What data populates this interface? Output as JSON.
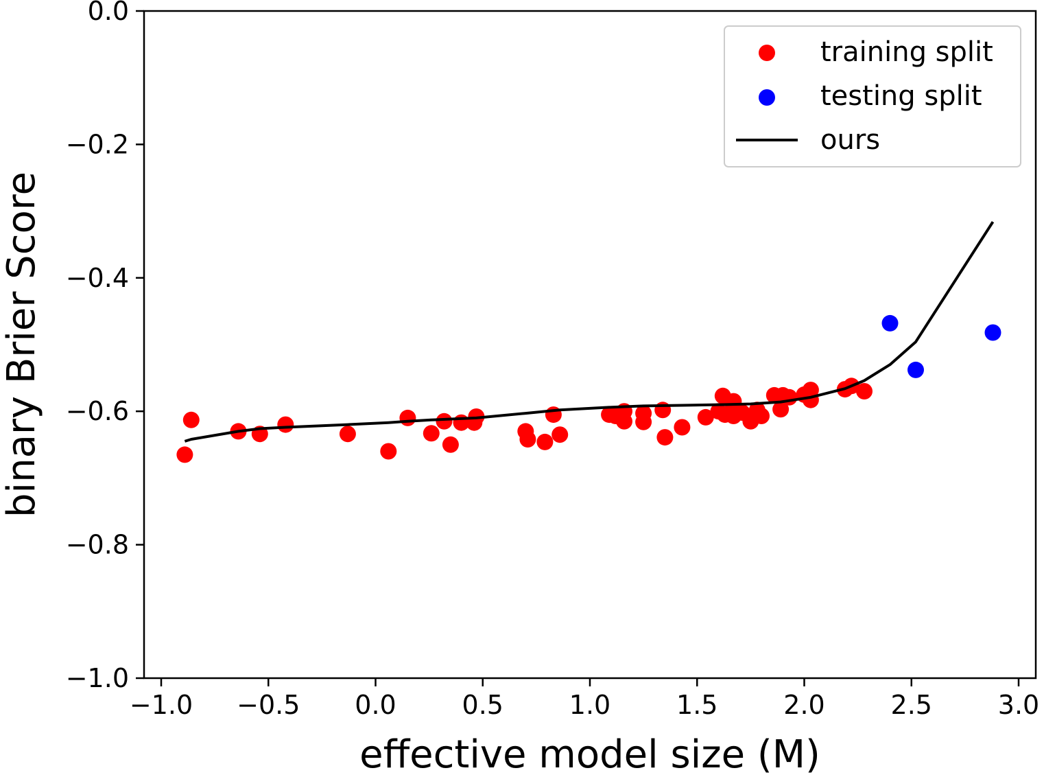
{
  "chart_data": {
    "type": "scatter",
    "title": "",
    "xlabel": "effective model size (M)",
    "ylabel": "binary Brier Score",
    "xlim": [
      -1.08,
      3.08
    ],
    "ylim": [
      -1.0,
      0.0
    ],
    "xticks": [
      -1.0,
      -0.5,
      0.0,
      0.5,
      1.0,
      1.5,
      2.0,
      2.5,
      3.0
    ],
    "xtick_labels": [
      "−1.0",
      "−0.5",
      "0.0",
      "0.5",
      "1.0",
      "1.5",
      "2.0",
      "2.5",
      "3.0"
    ],
    "yticks": [
      0.0,
      -0.2,
      -0.4,
      -0.6,
      -0.8,
      -1.0
    ],
    "ytick_labels": [
      "0.0",
      "−0.2",
      "−0.4",
      "−0.6",
      "−0.8",
      "−1.0"
    ],
    "grid": false,
    "legend_position": "top-right",
    "series": [
      {
        "name": "training split",
        "kind": "scatter",
        "color": "#ff0000",
        "points": [
          [
            -0.89,
            -0.665
          ],
          [
            -0.86,
            -0.613
          ],
          [
            -0.64,
            -0.63
          ],
          [
            -0.54,
            -0.634
          ],
          [
            -0.42,
            -0.62
          ],
          [
            -0.13,
            -0.634
          ],
          [
            0.06,
            -0.66
          ],
          [
            0.15,
            -0.61
          ],
          [
            0.26,
            -0.633
          ],
          [
            0.32,
            -0.615
          ],
          [
            0.35,
            -0.65
          ],
          [
            0.4,
            -0.617
          ],
          [
            0.46,
            -0.617
          ],
          [
            0.47,
            -0.608
          ],
          [
            0.7,
            -0.63
          ],
          [
            0.71,
            -0.642
          ],
          [
            0.79,
            -0.646
          ],
          [
            0.83,
            -0.605
          ],
          [
            0.86,
            -0.635
          ],
          [
            1.09,
            -0.605
          ],
          [
            1.12,
            -0.607
          ],
          [
            1.15,
            -0.61
          ],
          [
            1.16,
            -0.615
          ],
          [
            1.16,
            -0.6
          ],
          [
            1.25,
            -0.603
          ],
          [
            1.25,
            -0.616
          ],
          [
            1.34,
            -0.598
          ],
          [
            1.35,
            -0.639
          ],
          [
            1.43,
            -0.624
          ],
          [
            1.54,
            -0.609
          ],
          [
            1.6,
            -0.6
          ],
          [
            1.62,
            -0.577
          ],
          [
            1.63,
            -0.605
          ],
          [
            1.66,
            -0.6
          ],
          [
            1.67,
            -0.607
          ],
          [
            1.67,
            -0.585
          ],
          [
            1.71,
            -0.602
          ],
          [
            1.75,
            -0.615
          ],
          [
            1.78,
            -0.598
          ],
          [
            1.8,
            -0.607
          ],
          [
            1.86,
            -0.576
          ],
          [
            1.89,
            -0.597
          ],
          [
            1.9,
            -0.576
          ],
          [
            1.93,
            -0.579
          ],
          [
            2.0,
            -0.575
          ],
          [
            2.03,
            -0.583
          ],
          [
            2.03,
            -0.568
          ],
          [
            2.19,
            -0.567
          ],
          [
            2.22,
            -0.562
          ],
          [
            2.28,
            -0.57
          ]
        ]
      },
      {
        "name": "testing split",
        "kind": "scatter",
        "color": "#0000ff",
        "points": [
          [
            2.4,
            -0.468
          ],
          [
            2.52,
            -0.538
          ],
          [
            2.88,
            -0.482
          ]
        ]
      },
      {
        "name": "ours",
        "kind": "line",
        "color": "#000000",
        "points": [
          [
            -0.89,
            -0.645
          ],
          [
            -0.86,
            -0.642
          ],
          [
            -0.64,
            -0.63
          ],
          [
            -0.54,
            -0.626
          ],
          [
            -0.42,
            -0.624
          ],
          [
            -0.13,
            -0.62
          ],
          [
            0.06,
            -0.617
          ],
          [
            0.15,
            -0.615
          ],
          [
            0.26,
            -0.613
          ],
          [
            0.47,
            -0.61
          ],
          [
            0.7,
            -0.603
          ],
          [
            0.86,
            -0.598
          ],
          [
            1.09,
            -0.594
          ],
          [
            1.25,
            -0.592
          ],
          [
            1.43,
            -0.591
          ],
          [
            1.62,
            -0.59
          ],
          [
            1.75,
            -0.589
          ],
          [
            1.89,
            -0.586
          ],
          [
            2.03,
            -0.579
          ],
          [
            2.19,
            -0.566
          ],
          [
            2.28,
            -0.554
          ],
          [
            2.4,
            -0.53
          ],
          [
            2.52,
            -0.496
          ],
          [
            2.88,
            -0.316
          ]
        ]
      }
    ]
  }
}
